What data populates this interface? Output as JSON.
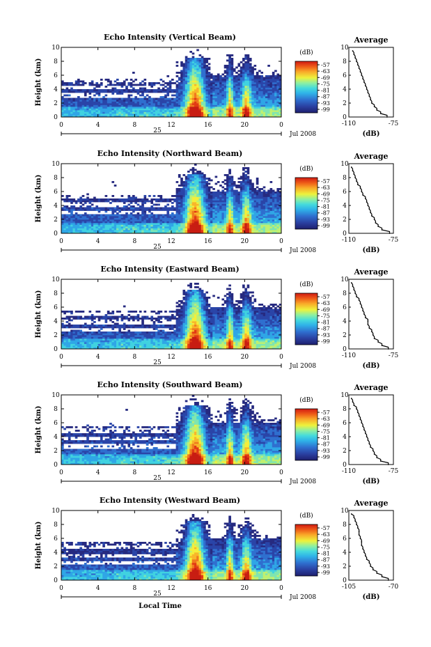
{
  "chart_data": [
    {
      "type": "heatmap",
      "title": "Echo Intensity (Vertical Beam)",
      "xlabel": "",
      "ylabel": "Height (km)",
      "xticks": [
        "0",
        "4",
        "8",
        "12",
        "16",
        "20",
        "0"
      ],
      "xlim": [
        0,
        24
      ],
      "yticks": [
        "0",
        "2",
        "4",
        "6",
        "8",
        "10"
      ],
      "ylim": [
        0,
        10
      ],
      "day_label": "25",
      "date_label": "Jul 2008",
      "colorbar": {
        "unit": "(dB)",
        "ticks": [
          "-57",
          "-63",
          "-69",
          "-75",
          "-81",
          "-87",
          "-93",
          "-99"
        ]
      },
      "profile": {
        "title": "Average",
        "xlabel": "(dB)",
        "xticks": [
          "-110",
          "-75"
        ],
        "xlim": [
          -110,
          -75
        ],
        "heights": [
          0,
          0.5,
          1,
          1.5,
          2,
          2.5,
          3,
          3.5,
          4,
          4.5,
          5,
          5.5,
          6,
          6.5,
          7,
          7.5,
          8,
          8.5,
          9,
          9.5
        ],
        "values": [
          -80,
          -85,
          -88,
          -90,
          -92,
          -93,
          -94,
          -95,
          -96,
          -97,
          -98,
          -99,
          -100,
          -101,
          -102,
          -103,
          -104,
          -105,
          -106,
          -107
        ]
      }
    },
    {
      "type": "heatmap",
      "title": "Echo Intensity (Northward Beam)",
      "xlabel": "",
      "ylabel": "Height (km)",
      "xticks": [
        "0",
        "4",
        "8",
        "12",
        "16",
        "20",
        "0"
      ],
      "xlim": [
        0,
        24
      ],
      "yticks": [
        "0",
        "2",
        "4",
        "6",
        "8",
        "10"
      ],
      "ylim": [
        0,
        10
      ],
      "day_label": "25",
      "date_label": "Jul 2008",
      "colorbar": {
        "unit": "(dB)",
        "ticks": [
          "-57",
          "-63",
          "-69",
          "-75",
          "-81",
          "-87",
          "-93",
          "-99"
        ]
      },
      "profile": {
        "title": "Average",
        "xlabel": "(dB)",
        "xticks": [
          "-110",
          "-75"
        ],
        "xlim": [
          -110,
          -75
        ],
        "heights": [
          0,
          0.5,
          1,
          1.5,
          2,
          2.5,
          3,
          3.5,
          4,
          4.5,
          5,
          5.5,
          6,
          6.5,
          7,
          7.5,
          8,
          8.5,
          9,
          9.5
        ],
        "values": [
          -78,
          -84,
          -87,
          -89,
          -90,
          -92,
          -93,
          -94,
          -95,
          -96,
          -97,
          -99,
          -100,
          -101,
          -103,
          -104,
          -105,
          -106,
          -107,
          -108
        ]
      }
    },
    {
      "type": "heatmap",
      "title": "Echo Intensity (Eastward Beam)",
      "xlabel": "",
      "ylabel": "Height (km)",
      "xticks": [
        "0",
        "4",
        "8",
        "12",
        "16",
        "20",
        "0"
      ],
      "xlim": [
        0,
        24
      ],
      "yticks": [
        "0",
        "2",
        "4",
        "6",
        "8",
        "10"
      ],
      "ylim": [
        0,
        10
      ],
      "day_label": "25",
      "date_label": "Jul 2008",
      "colorbar": {
        "unit": "(dB)",
        "ticks": [
          "-57",
          "-63",
          "-69",
          "-75",
          "-81",
          "-87",
          "-93",
          "-99"
        ]
      },
      "profile": {
        "title": "Average",
        "xlabel": "(dB)",
        "xticks": [
          "-110",
          "-75"
        ],
        "xlim": [
          -110,
          -75
        ],
        "heights": [
          0,
          0.5,
          1,
          1.5,
          2,
          2.5,
          3,
          3.5,
          4,
          4.5,
          5,
          5.5,
          6,
          6.5,
          7,
          7.5,
          8,
          8.5,
          9,
          9.5
        ],
        "values": [
          -79,
          -84,
          -87,
          -90,
          -91,
          -92,
          -94,
          -95,
          -95,
          -97,
          -98,
          -99,
          -100,
          -101,
          -102,
          -104,
          -105,
          -106,
          -107,
          -108
        ]
      }
    },
    {
      "type": "heatmap",
      "title": "Echo Intensity (Southward Beam)",
      "xlabel": "",
      "ylabel": "Height (km)",
      "xticks": [
        "0",
        "4",
        "8",
        "12",
        "16",
        "20",
        "0"
      ],
      "xlim": [
        0,
        24
      ],
      "yticks": [
        "0",
        "2",
        "4",
        "6",
        "8",
        "10"
      ],
      "ylim": [
        0,
        10
      ],
      "day_label": "25",
      "date_label": "Jul 2008",
      "colorbar": {
        "unit": "(dB)",
        "ticks": [
          "-57",
          "-63",
          "-69",
          "-75",
          "-81",
          "-87",
          "-93",
          "-99"
        ]
      },
      "profile": {
        "title": "Average",
        "xlabel": "(dB)",
        "xticks": [
          "-110",
          "-75"
        ],
        "xlim": [
          -110,
          -75
        ],
        "heights": [
          0,
          0.5,
          1,
          1.5,
          2,
          2.5,
          3,
          3.5,
          4,
          4.5,
          5,
          5.5,
          6,
          6.5,
          7,
          7.5,
          8,
          8.5,
          9,
          9.5
        ],
        "values": [
          -79,
          -85,
          -88,
          -90,
          -91,
          -93,
          -94,
          -95,
          -96,
          -97,
          -98,
          -99,
          -100,
          -101,
          -102,
          -103,
          -104,
          -106,
          -107,
          -108
        ]
      }
    },
    {
      "type": "heatmap",
      "title": "Echo Intensity (Westward Beam)",
      "xlabel": "Local Time",
      "ylabel": "Height (km)",
      "xticks": [
        "0",
        "4",
        "8",
        "12",
        "16",
        "20",
        "0"
      ],
      "xlim": [
        0,
        24
      ],
      "yticks": [
        "0",
        "2",
        "4",
        "6",
        "8",
        "10"
      ],
      "ylim": [
        0,
        10
      ],
      "day_label": "25",
      "date_label": "Jul 2008",
      "colorbar": {
        "unit": "(dB)",
        "ticks": [
          "-57",
          "-63",
          "-69",
          "-75",
          "-81",
          "-87",
          "-93",
          "-99"
        ]
      },
      "profile": {
        "title": "Average",
        "xlabel": "(dB)",
        "xticks": [
          "-105",
          "-70"
        ],
        "xlim": [
          -105,
          -70
        ],
        "heights": [
          0,
          0.5,
          1,
          1.5,
          2,
          2.5,
          3,
          3.5,
          4,
          4.5,
          5,
          5.5,
          6,
          6.5,
          7,
          7.5,
          8,
          8.5,
          9,
          9.5
        ],
        "values": [
          -74,
          -79,
          -83,
          -86,
          -88,
          -89,
          -91,
          -92,
          -93,
          -94,
          -95,
          -95,
          -96,
          -97,
          -97,
          -98,
          -99,
          -100,
          -101,
          -103
        ]
      }
    }
  ],
  "colors": {
    "palette": [
      "#262a80",
      "#2a45a8",
      "#2f6fcf",
      "#2fa6e6",
      "#40d2e0",
      "#7fe5b0",
      "#bff070",
      "#f4ee3a",
      "#f8b62a",
      "#f07a1e",
      "#e23a14",
      "#c81d12"
    ]
  }
}
